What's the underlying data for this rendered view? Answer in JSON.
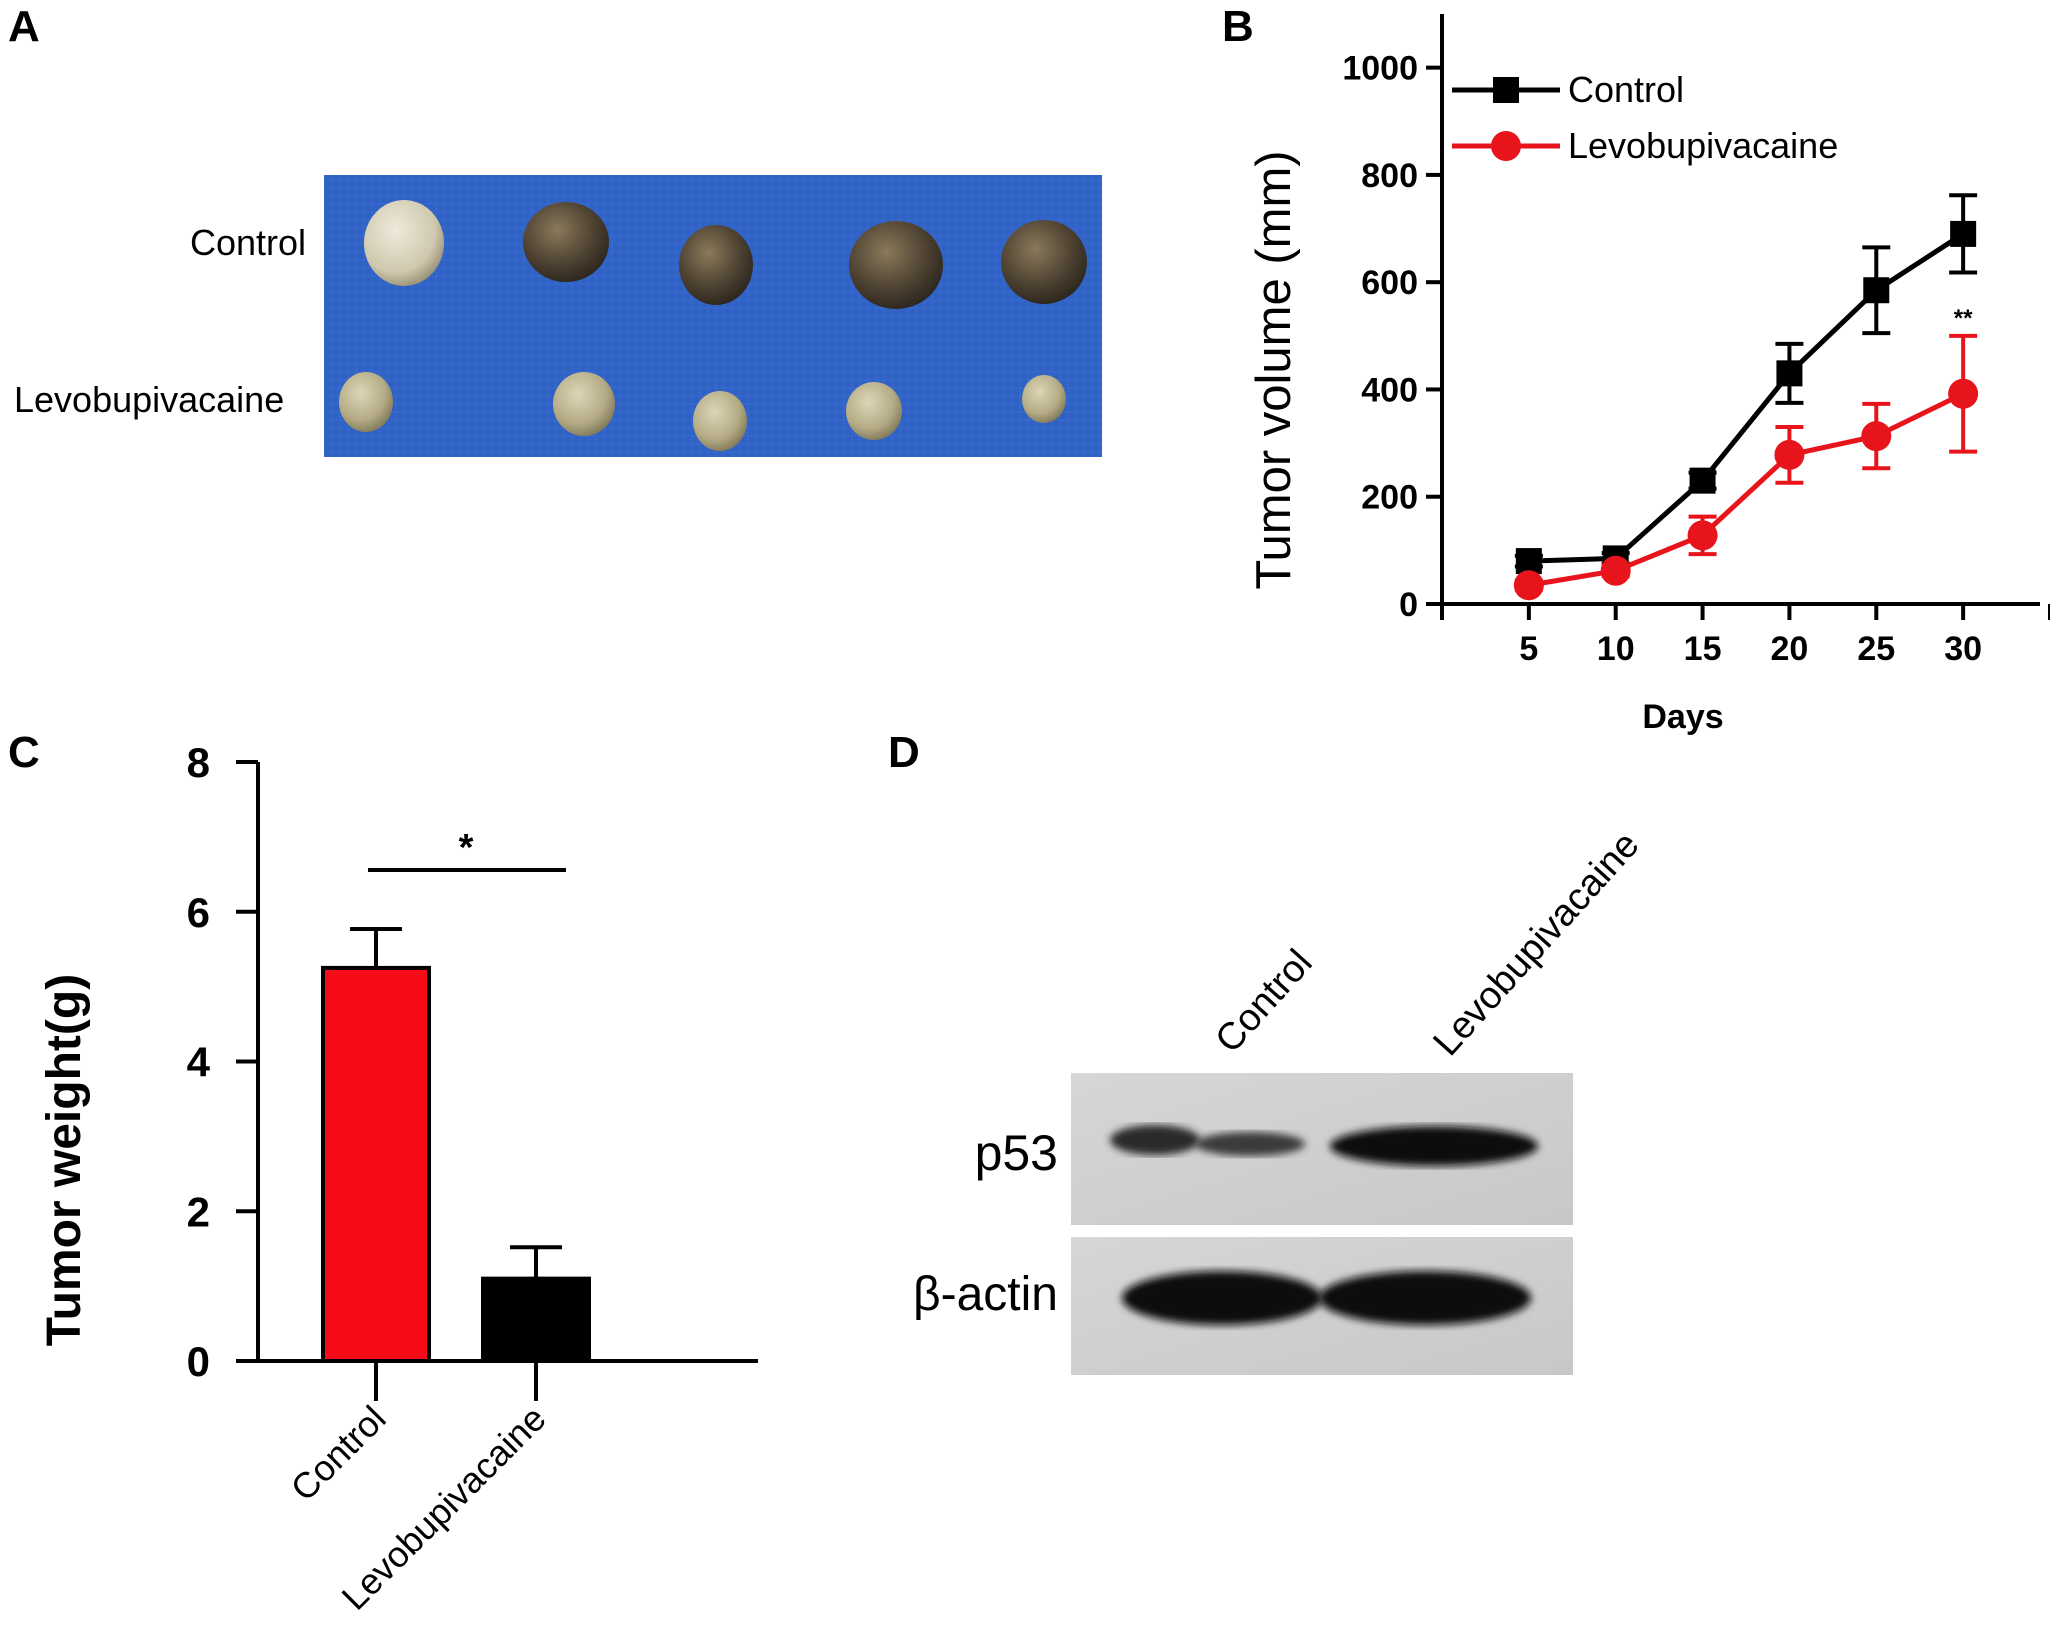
{
  "panels": {
    "a": "A",
    "b": "B",
    "c": "C",
    "d": "D"
  },
  "photo": {
    "row_labels": [
      "Control",
      "Levobupivacaine"
    ],
    "background_color": "#2f62c4"
  },
  "chart_data": [
    {
      "type": "line",
      "panel": "B",
      "title": "",
      "xlabel": "Days",
      "ylabel": "Tumor volume (mm)",
      "x": [
        5,
        10,
        15,
        20,
        25,
        30
      ],
      "x_ticks": [
        "5",
        "10",
        "15",
        "20",
        "25",
        "30"
      ],
      "xlim": [
        0,
        35
      ],
      "ylim": [
        0,
        1100
      ],
      "y_ticks": [
        "0",
        "200",
        "400",
        "600",
        "800",
        "1000"
      ],
      "grid": false,
      "legend_position": "top-left",
      "series": [
        {
          "name": "Control",
          "color": "#000000",
          "marker": "square",
          "values": [
            80,
            85,
            230,
            430,
            585,
            690
          ],
          "errors": [
            10,
            10,
            15,
            55,
            80,
            72
          ]
        },
        {
          "name": "Levobupivacaine",
          "color": "#e8141c",
          "marker": "circle",
          "values": [
            35,
            62,
            128,
            278,
            313,
            392
          ],
          "errors": [
            8,
            10,
            35,
            52,
            60,
            108
          ]
        }
      ],
      "annotations": [
        {
          "text": "**",
          "x": 30
        }
      ]
    },
    {
      "type": "bar",
      "panel": "C",
      "title": "",
      "xlabel": "",
      "ylabel": "Tumor weight(g)",
      "categories": [
        "Control",
        "Levobupivacaine"
      ],
      "values": [
        5.25,
        1.1
      ],
      "errors": [
        0.52,
        0.42
      ],
      "colors": [
        "#f50c18",
        "#000000"
      ],
      "ylim": [
        0,
        8
      ],
      "y_ticks": [
        "0",
        "2",
        "4",
        "6",
        "8"
      ],
      "grid": false,
      "significance": "*"
    }
  ],
  "blot": {
    "lanes": [
      "Control",
      "Levobupivacaine"
    ],
    "rows": [
      "p53",
      "β-actin"
    ]
  }
}
